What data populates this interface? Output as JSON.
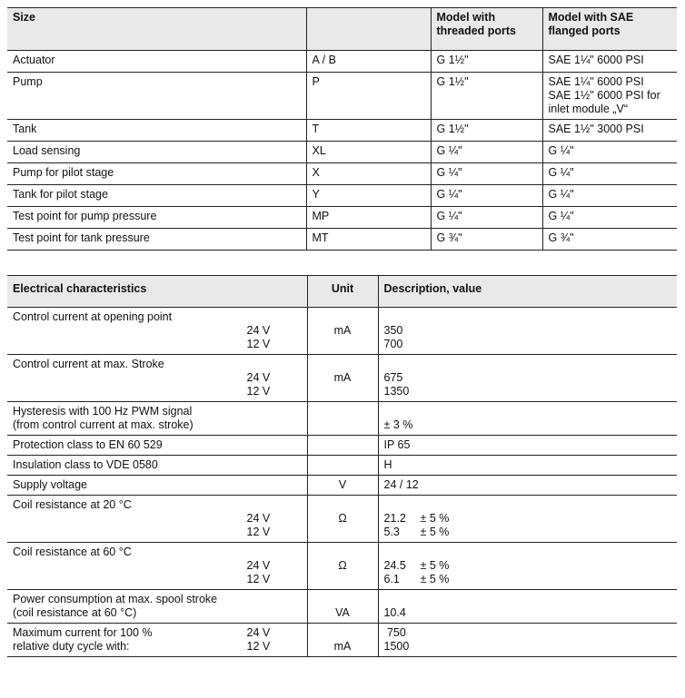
{
  "ports_table": {
    "headers": [
      "Size",
      "",
      "Model with threaded ports",
      "Model with SAE flanged ports"
    ],
    "rows": [
      [
        "Actuator",
        "A / B",
        "G 1½\"",
        "SAE 1¼\" 6000 PSI"
      ],
      [
        "Pump",
        "P",
        "G 1½\"",
        "SAE 1¼\" 6000 PSI\nSAE 1½\" 6000 PSI for inlet module „V“"
      ],
      [
        "Tank",
        "T",
        "G 1½\"",
        "SAE 1½\" 3000 PSI"
      ],
      [
        "Load sensing",
        "XL",
        "G ¼\"",
        "G ¼\""
      ],
      [
        "Pump for pilot stage",
        "X",
        "G ¼\"",
        "G ¼\""
      ],
      [
        "Tank for pilot stage",
        "Y",
        "G ¼\"",
        "G ¼\""
      ],
      [
        "Test point for pump pressure",
        "MP",
        "G  ¼\"",
        "G ¼\""
      ],
      [
        "Test point for tank pressure",
        "MT",
        "G ¾\"",
        "G ¾\""
      ]
    ]
  },
  "electrical_table": {
    "headers": [
      "Electrical characteristics",
      "Unit",
      "Description, value"
    ],
    "rows": [
      {
        "label": "Control current at opening point",
        "v1": "24 V",
        "v2": "12 V",
        "unit": "mA",
        "val1": "350",
        "val2": "700"
      },
      {
        "label": "Control current at max. Stroke",
        "v1": "24 V",
        "v2": "12 V",
        "unit": "mA",
        "val1": "675",
        "val2": "1350"
      },
      {
        "label": "Hysteresis with 100 Hz PWM signal",
        "label2": "(from control current at max. stroke)",
        "unit": "",
        "val": "± 3 %"
      },
      {
        "label": "Protection class to EN 60 529",
        "unit": "",
        "val": "IP 65"
      },
      {
        "label": "Insulation class to VDE 0580",
        "unit": "",
        "val": "H"
      },
      {
        "label": "Supply voltage",
        "unit": "V",
        "val": "24 / 12"
      },
      {
        "label": "Coil resistance at 20 °C",
        "v1": "24 V",
        "v2": "12 V",
        "unit": "Ω",
        "val1": "21.2",
        "tol1": "± 5 %",
        "val2": "5.3",
        "tol2": "± 5 %"
      },
      {
        "label": "Coil resistance at 60 °C",
        "v1": "24 V",
        "v2": "12 V",
        "unit": "Ω",
        "val1": "24.5",
        "tol1": "± 5 %",
        "val2": "6.1",
        "tol2": "± 5 %"
      },
      {
        "label": "Power consumption at max. spool stroke",
        "label2": "(coil resistance at 60 °C)",
        "unit": "VA",
        "val": "10.4"
      },
      {
        "label": "Maximum current for 100 %",
        "label2": "relative duty cycle with:",
        "v1": "24 V",
        "v2": "12 V",
        "unit": "mA",
        "val1": " 750",
        "val2": "1500"
      }
    ]
  }
}
